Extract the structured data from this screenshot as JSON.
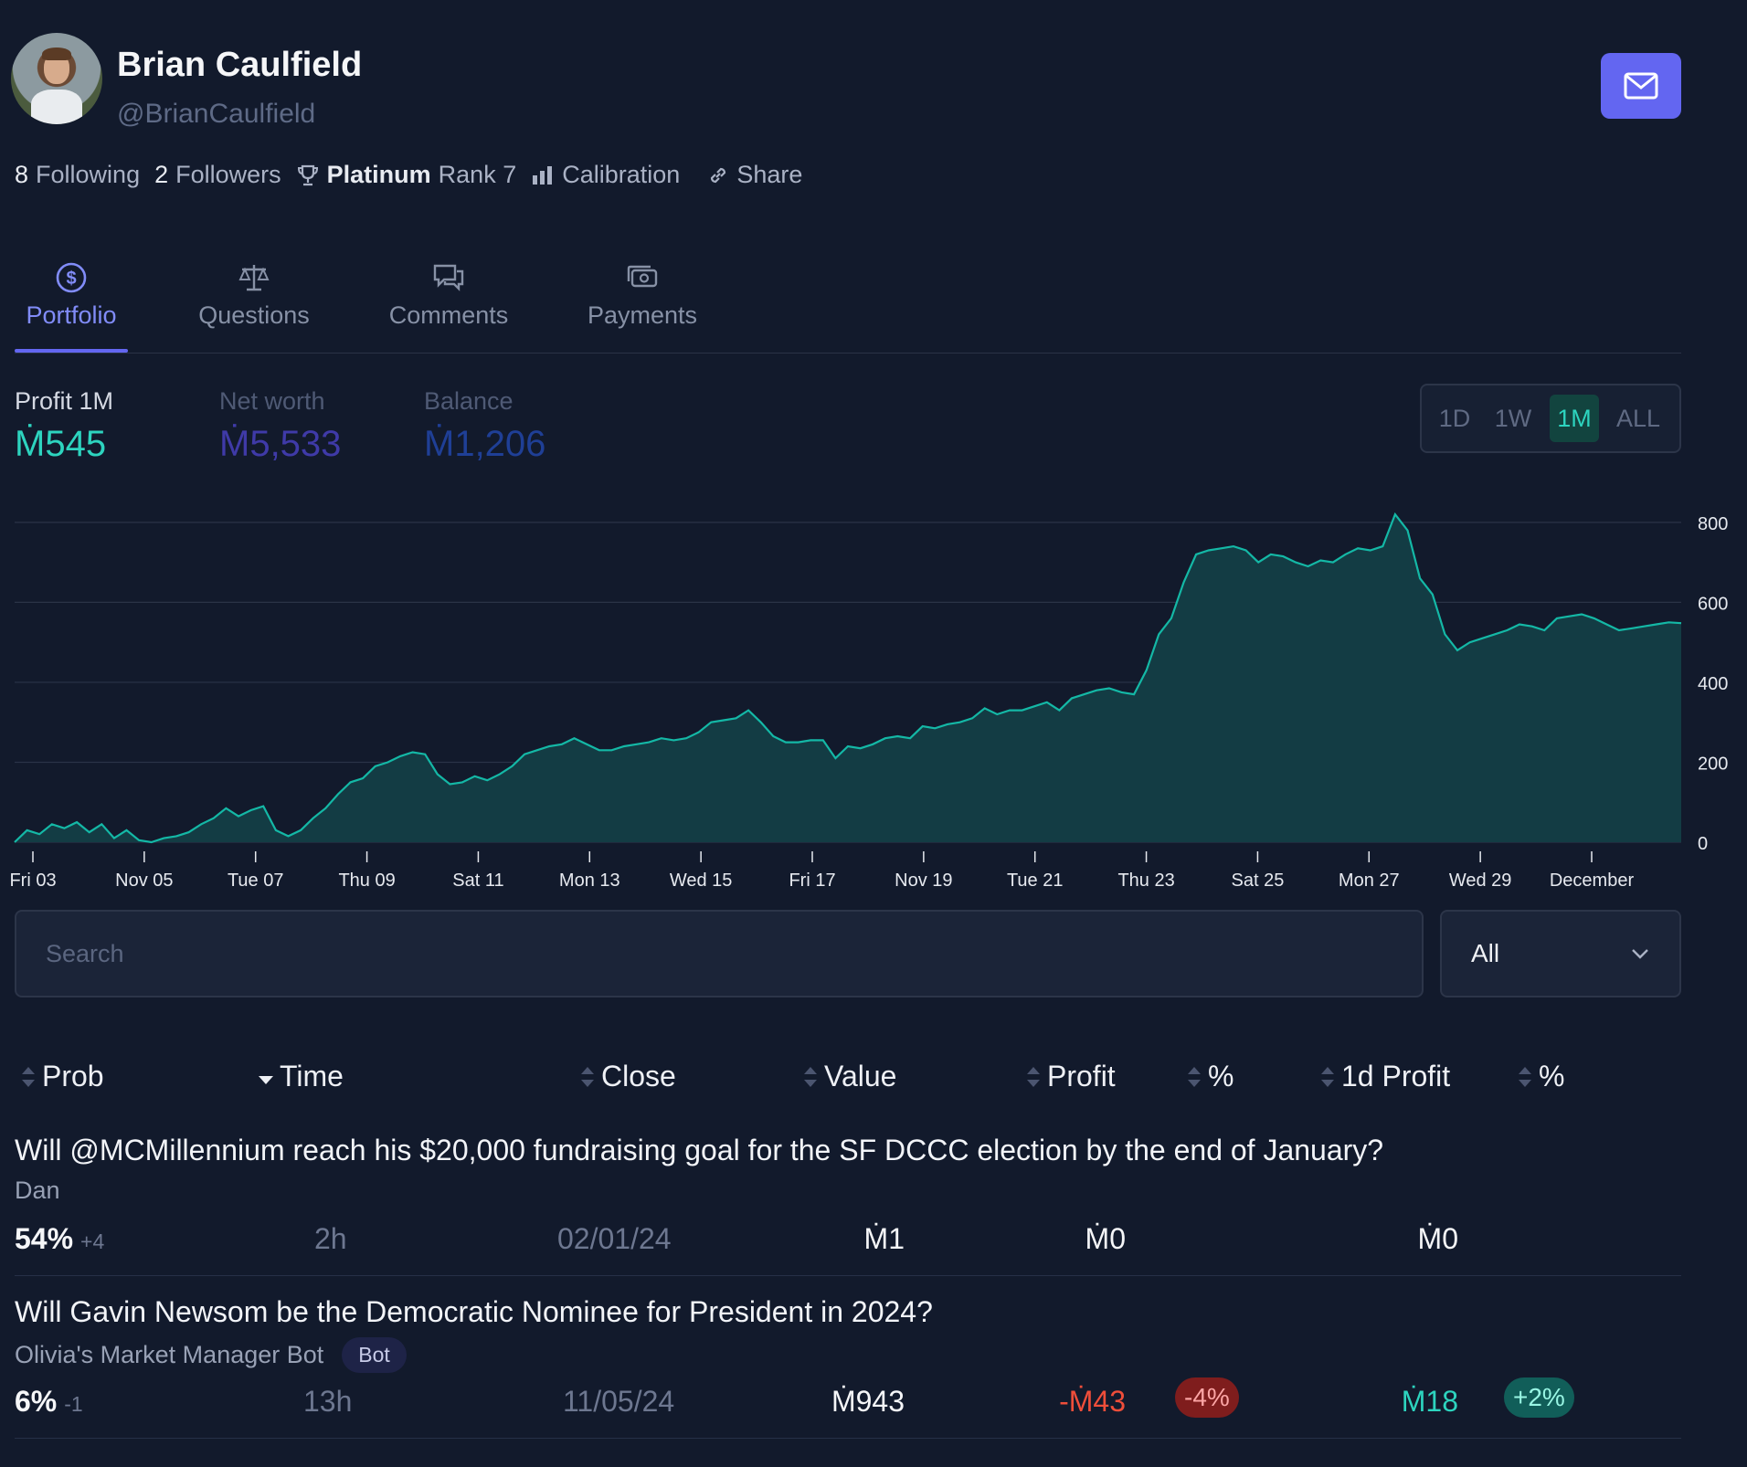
{
  "profile": {
    "name": "Brian Caulfield",
    "handle": "@BrianCaulfield",
    "following_count": "8",
    "following_label": "Following",
    "followers_count": "2",
    "followers_label": "Followers",
    "rank_tier": "Platinum",
    "rank_label": "Rank 7",
    "calibration_label": "Calibration",
    "share_label": "Share",
    "icons": [
      "envelope-icon",
      "trophy-icon",
      "bar-chart-icon",
      "link-icon"
    ]
  },
  "tabs": [
    {
      "label": "Portfolio",
      "icon": "dollar-circle-icon",
      "active": true
    },
    {
      "label": "Questions",
      "icon": "scale-icon",
      "active": false
    },
    {
      "label": "Comments",
      "icon": "chat-bubbles-icon",
      "active": false
    },
    {
      "label": "Payments",
      "icon": "cash-icon",
      "active": false
    }
  ],
  "metrics": {
    "profit_label": "Profit 1M",
    "profit_value": "Ṁ545",
    "networth_label": "Net worth",
    "networth_value": "Ṁ5,533",
    "balance_label": "Balance",
    "balance_value": "Ṁ1,206",
    "colors": {
      "profit": "#2dd4bf",
      "networth": "#4338ca",
      "balance": "#1e40af"
    }
  },
  "time_ranges": [
    "1D",
    "1W",
    "1M",
    "ALL"
  ],
  "time_range_selected": "1M",
  "chart_data": {
    "type": "area",
    "series": [
      {
        "values": [
          0,
          30,
          20,
          45,
          35,
          50,
          25,
          45,
          10,
          30,
          5,
          0,
          10,
          15,
          25,
          45,
          60,
          85,
          65,
          80,
          90,
          30,
          15,
          30,
          60,
          85,
          120,
          150,
          160,
          190,
          200,
          215,
          225,
          220,
          170,
          145,
          150,
          165,
          155,
          170,
          190,
          220,
          230,
          240,
          245,
          260,
          245,
          230,
          230,
          240,
          245,
          250,
          260,
          255,
          260,
          275,
          300,
          305,
          310,
          330,
          300,
          265,
          250,
          250,
          255,
          255,
          210,
          240,
          235,
          245,
          260,
          265,
          260,
          290,
          285,
          295,
          300,
          310,
          335,
          320,
          330,
          330,
          340,
          350,
          330,
          360,
          370,
          380,
          385,
          375,
          370,
          430,
          520,
          560,
          650,
          720,
          730,
          735,
          740,
          730,
          700,
          720,
          715,
          700,
          690,
          705,
          700,
          720,
          735,
          730,
          740,
          820,
          780,
          660,
          620,
          520,
          480,
          500,
          510,
          520,
          530,
          545,
          540,
          530,
          560,
          565,
          570,
          560,
          545,
          530,
          535,
          540,
          545,
          550,
          548
        ]
      }
    ],
    "x_tick_labels": [
      "Fri 03",
      "Nov 05",
      "Tue 07",
      "Thu 09",
      "Sat 11",
      "Mon 13",
      "Wed 15",
      "Fri 17",
      "Nov 19",
      "Tue 21",
      "Thu 23",
      "Sat 25",
      "Mon 27",
      "Wed 29",
      "December"
    ],
    "y_tick_labels": [
      "0",
      "200",
      "400",
      "600",
      "800"
    ],
    "y_ticks": [
      0,
      200,
      400,
      600,
      800
    ],
    "ylim": [
      0,
      850
    ],
    "grid": true,
    "y_axis_side": "right",
    "colors": {
      "line": "#14b8a6",
      "fill": "#133c44",
      "negative": "#ef4444"
    }
  },
  "search": {
    "placeholder": "Search",
    "value": ""
  },
  "filter": {
    "selected": "All"
  },
  "table": {
    "columns": [
      "Prob",
      "Time",
      "Close",
      "Value",
      "Profit",
      "%",
      "1d Profit",
      "%"
    ],
    "rows": [
      {
        "question": "Will @MCMillennium reach his $20,000 fundraising goal for the SF DCCC election by the end of January?",
        "creator": "Dan",
        "bot_badge": "",
        "prob": "54%",
        "prob_delta": "+4",
        "time": "2h",
        "close": "02/01/24",
        "value": "Ṁ1",
        "profit": "Ṁ0",
        "profit_pct": "",
        "day_profit": "Ṁ0",
        "day_profit_pct": ""
      },
      {
        "question": "Will Gavin Newsom be the Democratic Nominee for President in 2024?",
        "creator": "Olivia's Market Manager Bot",
        "bot_badge": "Bot",
        "prob": "6%",
        "prob_delta": "-1",
        "time": "13h",
        "close": "11/05/24",
        "value": "Ṁ943",
        "profit": "-Ṁ43",
        "profit_pct": "-4%",
        "day_profit": "Ṁ18",
        "day_profit_pct": "+2%"
      }
    ]
  }
}
